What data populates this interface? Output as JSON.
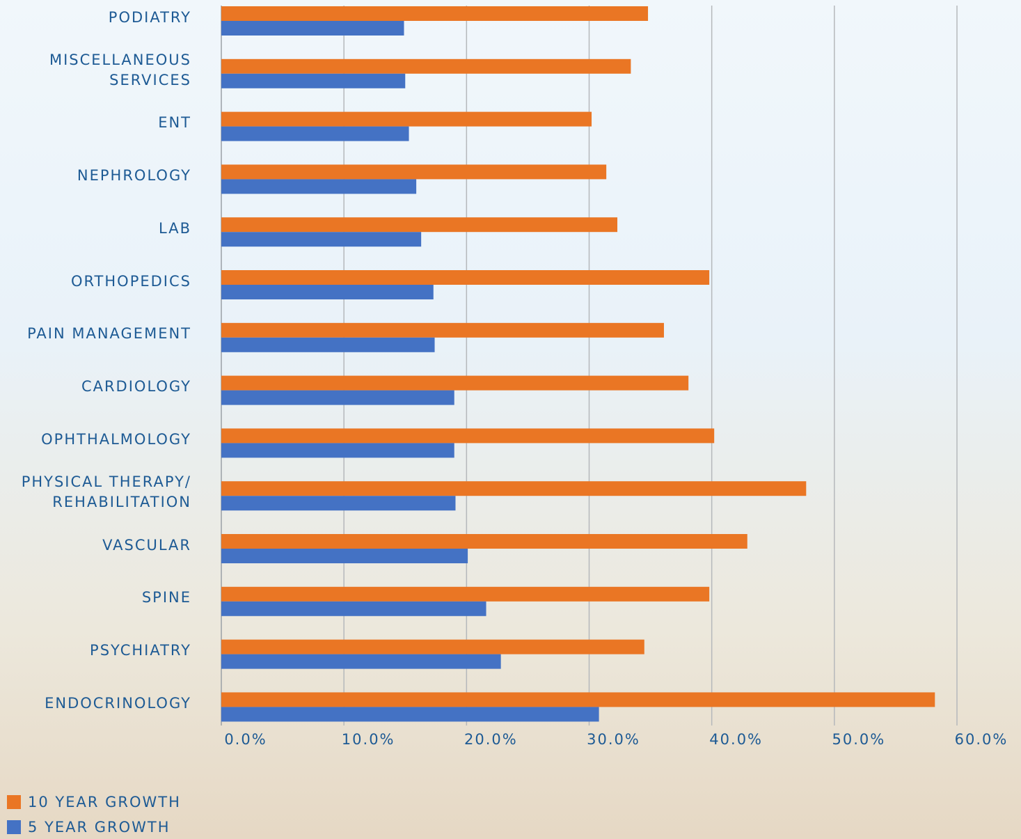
{
  "chart_data": {
    "type": "bar",
    "orientation": "horizontal",
    "categories": [
      "PODIATRY",
      "MISCELLANEOUS SERVICES",
      "ENT",
      "NEPHROLOGY",
      "LAB",
      "ORTHOPEDICS",
      "PAIN MANAGEMENT",
      "CARDIOLOGY",
      "OPHTHALMOLOGY",
      "PHYSICAL THERAPY/ REHABILITATION",
      "VASCULAR",
      "SPINE",
      "PSYCHIATRY",
      "ENDOCRINOLOGY"
    ],
    "series": [
      {
        "name": "10 YEAR GROWTH",
        "color": "#ea7624",
        "values": [
          34.8,
          33.4,
          30.2,
          31.4,
          32.3,
          39.8,
          36.1,
          38.1,
          40.2,
          47.7,
          42.9,
          39.8,
          34.5,
          58.2
        ]
      },
      {
        "name": "5 YEAR GROWTH",
        "color": "#4472c4",
        "values": [
          14.9,
          15.0,
          15.3,
          15.9,
          16.3,
          17.3,
          17.4,
          19.0,
          19.0,
          19.1,
          20.1,
          21.6,
          22.8,
          30.8
        ]
      }
    ],
    "xlim": [
      0,
      60
    ],
    "xticks": [
      {
        "value": 0,
        "label": "0.0%"
      },
      {
        "value": 10,
        "label": "10.0%"
      },
      {
        "value": 20,
        "label": "20.0%"
      },
      {
        "value": 30,
        "label": "30.0%"
      },
      {
        "value": 40,
        "label": "40.0%"
      },
      {
        "value": 50,
        "label": "50.0%"
      },
      {
        "value": 60,
        "label": "60.0%"
      }
    ],
    "grid": true,
    "legend": "bottom-left"
  }
}
